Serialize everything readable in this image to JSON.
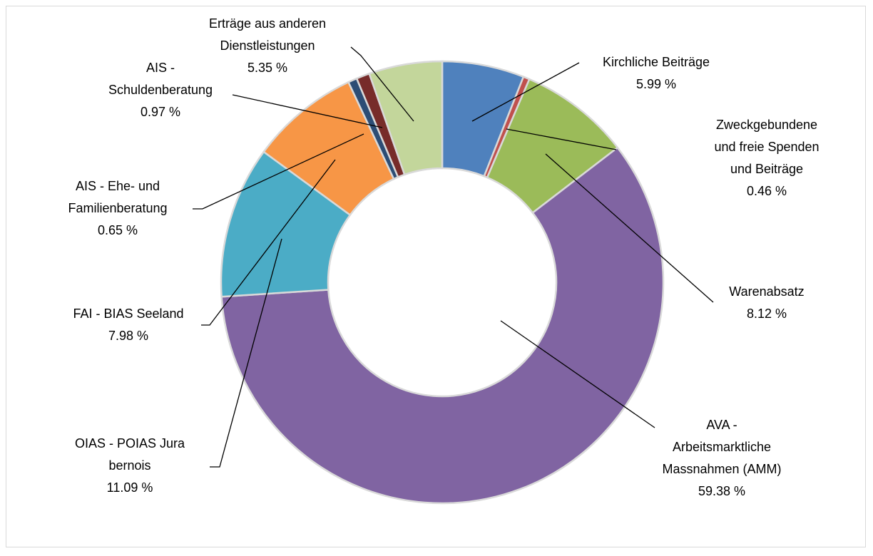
{
  "chart_data": {
    "type": "donut",
    "categories": [
      "Kirchliche Beiträge",
      "Zweckgebundene und freie Spenden und Beiträge",
      "Warenabsatz",
      "AVA - Arbeitsmarktliche Massnahmen (AMM)",
      "OIAS - POIAS Jura bernois",
      "FAI - BIAS Seeland",
      "AIS - Ehe- und Familienberatung",
      "AIS - Schuldenberatung",
      "Erträge aus anderen Dienstleistungen"
    ],
    "values": [
      5.99,
      0.46,
      8.12,
      59.38,
      11.09,
      7.98,
      0.65,
      0.97,
      5.35
    ],
    "value_labels": [
      "5.99 %",
      "0.46 %",
      "8.12 %",
      "59.38 %",
      "11.09 %",
      "7.98 %",
      "0.65 %",
      "0.97 %",
      "5.35 %"
    ],
    "colors": [
      "#4f81bd",
      "#c0504d",
      "#9bbb59",
      "#8064a2",
      "#4bacc6",
      "#f79646",
      "#2c4d75",
      "#772c2a",
      "#c3d69b"
    ]
  }
}
